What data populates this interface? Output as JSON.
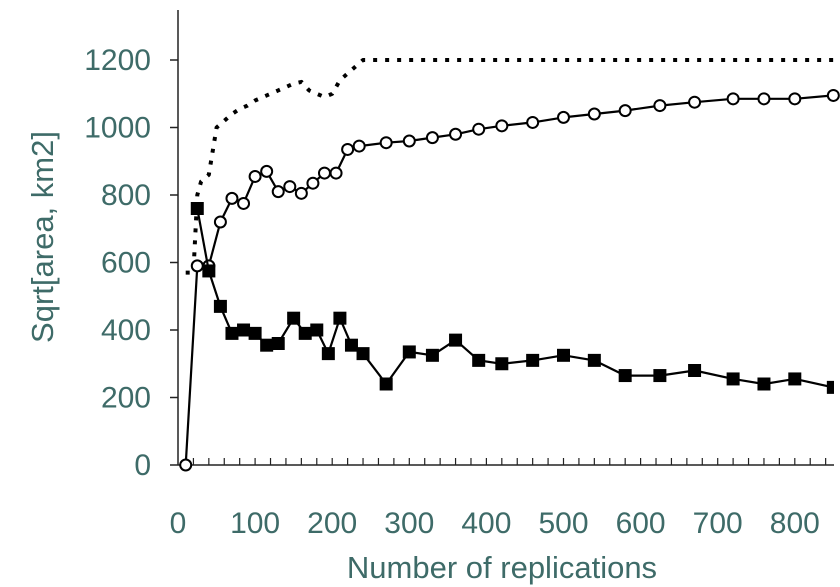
{
  "chart_data": {
    "type": "line",
    "xlabel": "Number of replications",
    "ylabel": "Sqrt[area, km2]",
    "xlim": [
      0,
      850
    ],
    "ylim": [
      0,
      1300
    ],
    "x_ticks": [
      0,
      100,
      200,
      300,
      400,
      500,
      600,
      700,
      800
    ],
    "y_ticks": [
      0,
      200,
      400,
      600,
      800,
      1000,
      1200
    ],
    "grid": false,
    "colors": {
      "axis_text": "#3e6b68",
      "series": "#000000",
      "open_marker_fill": "#ffffff"
    },
    "series": [
      {
        "style": "dotted",
        "marker": "none",
        "x": [
          10,
          20,
          25,
          30,
          40,
          50,
          60,
          70,
          80,
          90,
          100,
          110,
          120,
          130,
          140,
          150,
          160,
          170,
          180,
          190,
          200,
          210,
          220,
          230,
          240,
          260,
          280,
          300,
          350,
          400,
          450,
          500,
          600,
          700,
          800,
          850
        ],
        "y": [
          570,
          570,
          800,
          840,
          860,
          1000,
          1020,
          1040,
          1055,
          1065,
          1080,
          1090,
          1100,
          1110,
          1120,
          1130,
          1135,
          1110,
          1100,
          1090,
          1100,
          1140,
          1160,
          1180,
          1200,
          1200,
          1200,
          1200,
          1200,
          1200,
          1200,
          1200,
          1200,
          1200,
          1200,
          1200
        ]
      },
      {
        "style": "solid",
        "marker": "open-circle",
        "x": [
          10,
          25,
          40,
          55,
          70,
          85,
          100,
          115,
          130,
          145,
          160,
          175,
          190,
          205,
          220,
          235,
          270,
          300,
          330,
          360,
          390,
          420,
          460,
          500,
          540,
          580,
          625,
          670,
          720,
          760,
          800,
          850
        ],
        "y": [
          0,
          590,
          590,
          720,
          790,
          775,
          855,
          870,
          810,
          825,
          805,
          835,
          865,
          865,
          935,
          945,
          955,
          960,
          970,
          980,
          995,
          1005,
          1015,
          1030,
          1040,
          1050,
          1065,
          1075,
          1085,
          1085,
          1085,
          1095
        ]
      },
      {
        "style": "solid",
        "marker": "filled-square",
        "x": [
          25,
          40,
          55,
          70,
          85,
          100,
          115,
          130,
          150,
          165,
          180,
          195,
          210,
          225,
          240,
          270,
          300,
          330,
          360,
          390,
          420,
          460,
          500,
          540,
          580,
          625,
          670,
          720,
          760,
          800,
          850
        ],
        "y": [
          760,
          575,
          470,
          390,
          400,
          390,
          355,
          360,
          435,
          390,
          400,
          330,
          435,
          355,
          330,
          240,
          335,
          325,
          370,
          310,
          300,
          310,
          325,
          310,
          265,
          265,
          280,
          255,
          240,
          255,
          230
        ]
      }
    ]
  }
}
